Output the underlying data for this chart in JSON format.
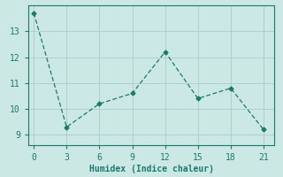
{
  "x": [
    0,
    3,
    6,
    9,
    12,
    15,
    18,
    21
  ],
  "y": [
    13.7,
    9.3,
    10.2,
    10.6,
    12.2,
    10.4,
    10.8,
    9.2
  ],
  "line_color": "#1a7a6e",
  "marker": "D",
  "marker_size": 2.5,
  "bg_color": "#cce8e4",
  "grid_color": "#aaccca",
  "xlabel": "Humidex (Indice chaleur)",
  "xlabel_fontsize": 7,
  "tick_fontsize": 7,
  "xlim": [
    -0.5,
    22
  ],
  "ylim": [
    8.6,
    14.0
  ],
  "yticks": [
    9,
    10,
    11,
    12,
    13
  ],
  "xticks": [
    0,
    3,
    6,
    9,
    12,
    15,
    18,
    21
  ]
}
